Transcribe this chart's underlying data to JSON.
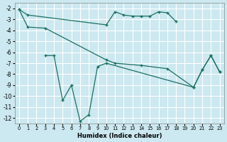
{
  "xlabel": "Humidex (Indice chaleur)",
  "bg_color": "#cce8f0",
  "grid_color": "#ffffff",
  "line_color": "#1a7060",
  "ylim": [
    -12.5,
    -1.5
  ],
  "xlim": [
    -0.5,
    23.5
  ],
  "yticks": [
    -2,
    -3,
    -4,
    -5,
    -6,
    -7,
    -8,
    -9,
    -10,
    -11,
    -12
  ],
  "xticks": [
    0,
    1,
    2,
    3,
    4,
    5,
    6,
    7,
    8,
    9,
    10,
    11,
    12,
    13,
    14,
    15,
    16,
    17,
    18,
    19,
    20,
    21,
    22,
    23
  ],
  "line1_x": [
    0,
    1,
    10,
    11,
    12,
    13,
    14,
    15,
    16,
    17,
    18
  ],
  "line1_y": [
    -2.1,
    -2.6,
    -3.5,
    -2.3,
    -2.6,
    -2.7,
    -2.7,
    -2.7,
    -2.3,
    -2.4,
    -3.2
  ],
  "line2_x": [
    0,
    1,
    3,
    10,
    11,
    14,
    17,
    20,
    21,
    22,
    23
  ],
  "line2_y": [
    -2.1,
    -3.7,
    -3.8,
    -6.7,
    -7.0,
    -7.2,
    -7.5,
    -9.2,
    -7.6,
    -6.3,
    -7.8
  ],
  "line3_x": [
    3,
    4,
    5,
    6,
    7,
    8,
    9,
    10,
    20,
    21,
    22,
    23
  ],
  "line3_y": [
    -6.3,
    -6.3,
    -10.4,
    -9.0,
    -12.3,
    -11.7,
    -7.3,
    -7.0,
    -9.2,
    -7.6,
    -6.3,
    -7.8
  ]
}
